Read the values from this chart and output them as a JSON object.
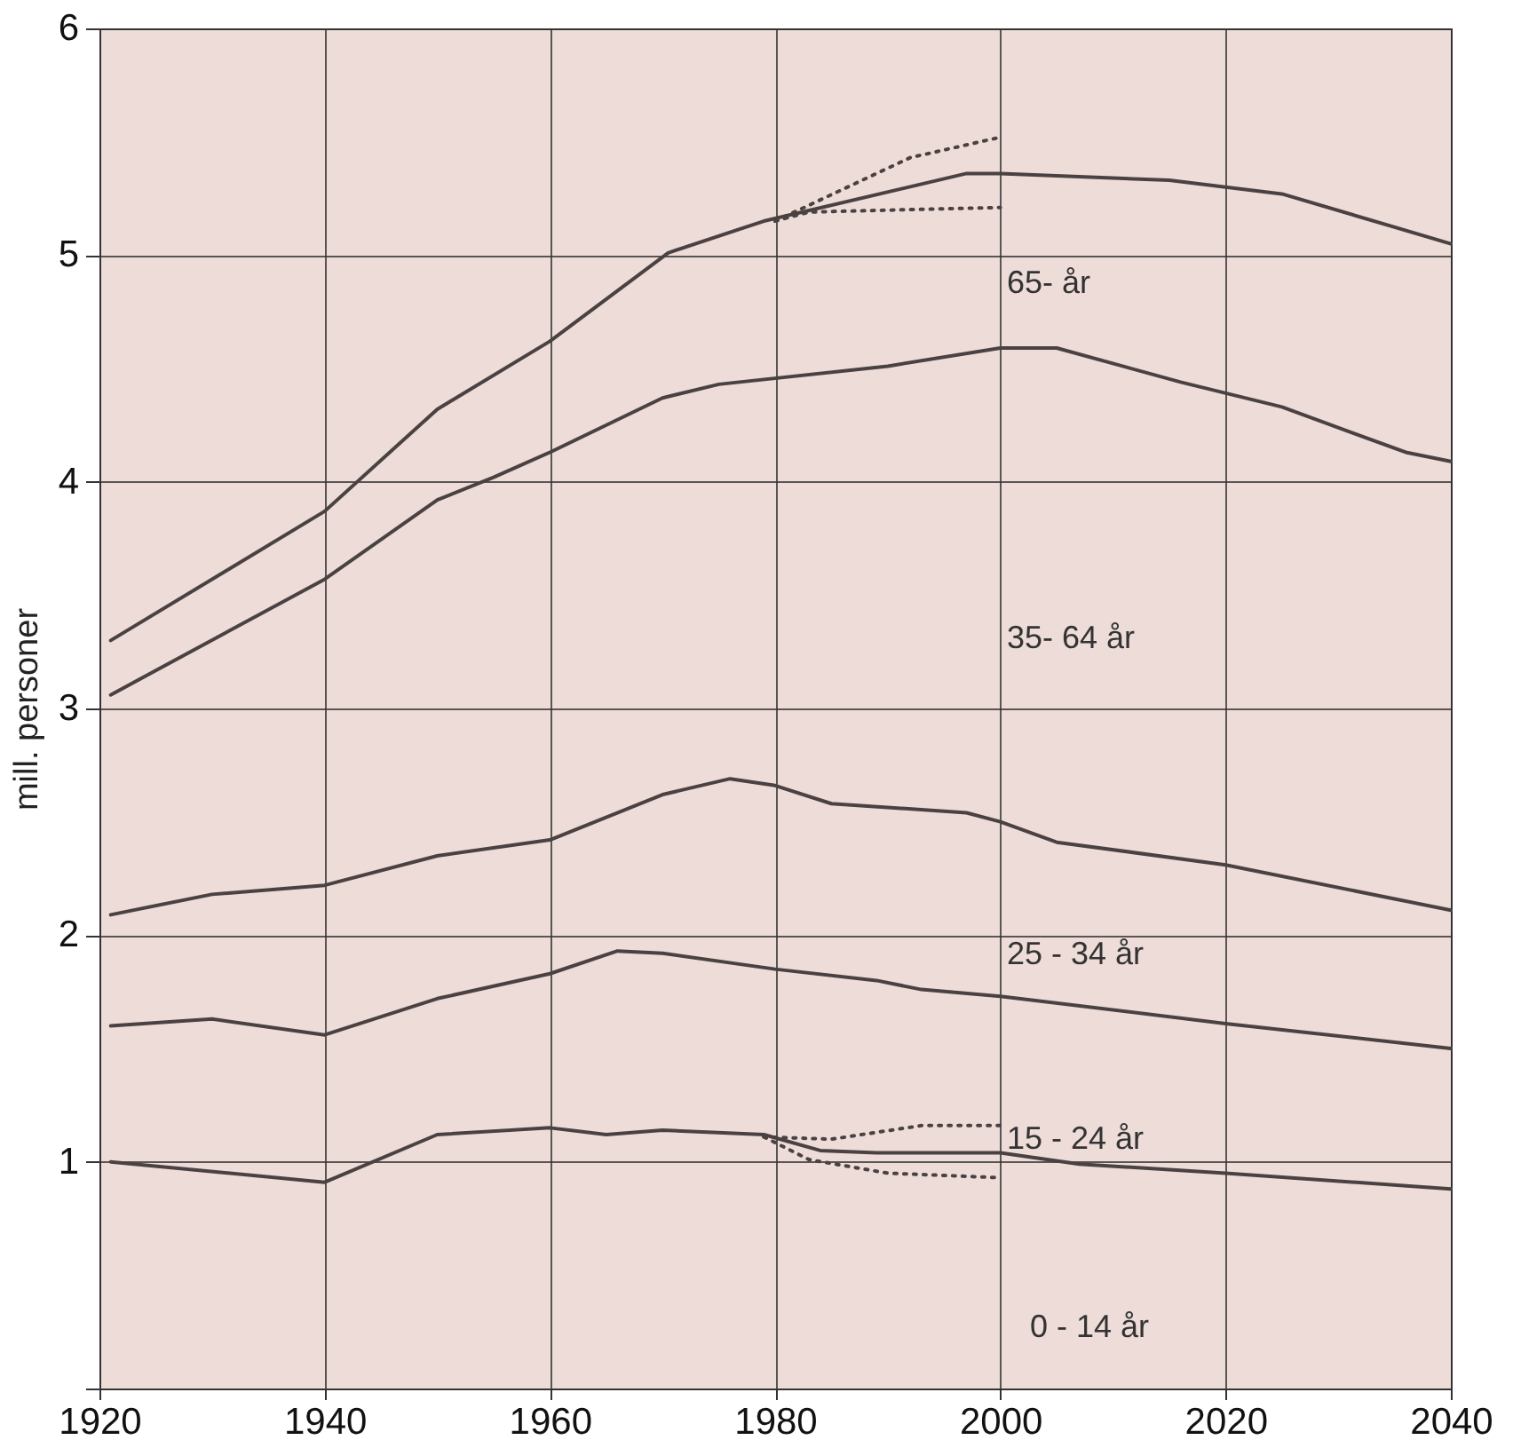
{
  "chart_data": {
    "type": "line",
    "ylabel": "mill. personer",
    "xlim": [
      1920,
      2040
    ],
    "ylim": [
      0,
      6
    ],
    "xticks": [
      1920,
      1940,
      1960,
      1980,
      2000,
      2020,
      2040
    ],
    "yticks": [
      {
        "value": 0,
        "label": null
      },
      1,
      2,
      3,
      4,
      5,
      6
    ],
    "grid": true,
    "line_style": "solid",
    "series": [
      {
        "color": "#4a4242",
        "x": [
          1921,
          1940,
          1950,
          1960,
          1970.5,
          1979,
          1997,
          2000,
          2015,
          2025,
          2040
        ],
        "values": [
          3.3,
          3.87,
          4.32,
          4.62,
          5.01,
          5.15,
          5.36,
          5.36,
          5.33,
          5.27,
          5.05
        ]
      },
      {
        "color": "#4a4242",
        "line_style": "dotted",
        "x": [
          1980,
          1992,
          2000
        ],
        "values": [
          5.15,
          5.43,
          5.52
        ]
      },
      {
        "color": "#4a4242",
        "line_style": "dotted",
        "x": [
          1980,
          1983,
          2000
        ],
        "values": [
          5.15,
          5.19,
          5.21
        ]
      },
      {
        "color": "#4a4242",
        "x": [
          1921,
          1940,
          1950,
          1955,
          1960,
          1970,
          1975,
          1990,
          2000,
          2005,
          2016,
          2025,
          2036,
          2040
        ],
        "values": [
          3.06,
          3.57,
          3.92,
          4.02,
          4.13,
          4.37,
          4.43,
          4.51,
          4.59,
          4.59,
          4.44,
          4.33,
          4.13,
          4.09
        ]
      },
      {
        "color": "#4a4242",
        "x": [
          1921,
          1930,
          1940,
          1950,
          1960,
          1970,
          1976,
          1980,
          1985,
          1997,
          2000,
          2005,
          2020,
          2035,
          2040
        ],
        "values": [
          2.09,
          2.18,
          2.22,
          2.35,
          2.42,
          2.62,
          2.69,
          2.66,
          2.58,
          2.54,
          2.5,
          2.41,
          2.31,
          2.16,
          2.11
        ]
      },
      {
        "color": "#4a4242",
        "x": [
          1921,
          1930,
          1940,
          1950,
          1960,
          1966,
          1970,
          1980,
          1989,
          1993,
          2000,
          2020,
          2040
        ],
        "values": [
          1.6,
          1.63,
          1.56,
          1.72,
          1.83,
          1.93,
          1.92,
          1.85,
          1.8,
          1.76,
          1.73,
          1.61,
          1.5
        ]
      },
      {
        "color": "#4a4242",
        "x": [
          1921,
          1940,
          1950,
          1960,
          1965,
          1970,
          1979,
          1984,
          1989,
          1993,
          2000,
          2007,
          2020,
          2040
        ],
        "values": [
          1.0,
          0.91,
          1.12,
          1.15,
          1.12,
          1.14,
          1.12,
          1.05,
          1.04,
          1.04,
          1.04,
          0.99,
          0.95,
          0.88
        ]
      },
      {
        "color": "#4a4242",
        "line_style": "dotted",
        "x": [
          1979,
          1985,
          1993,
          2000
        ],
        "values": [
          1.11,
          1.1,
          1.16,
          1.16
        ]
      },
      {
        "color": "#4a4242",
        "line_style": "dotted",
        "x": [
          1979,
          1983,
          1990,
          2000
        ],
        "values": [
          1.11,
          1.01,
          0.95,
          0.93
        ]
      }
    ],
    "annotations": [
      "65-     år",
      "35- 64 år",
      "25 - 34 år",
      "15 - 24 år",
      "0 - 14 år"
    ]
  }
}
